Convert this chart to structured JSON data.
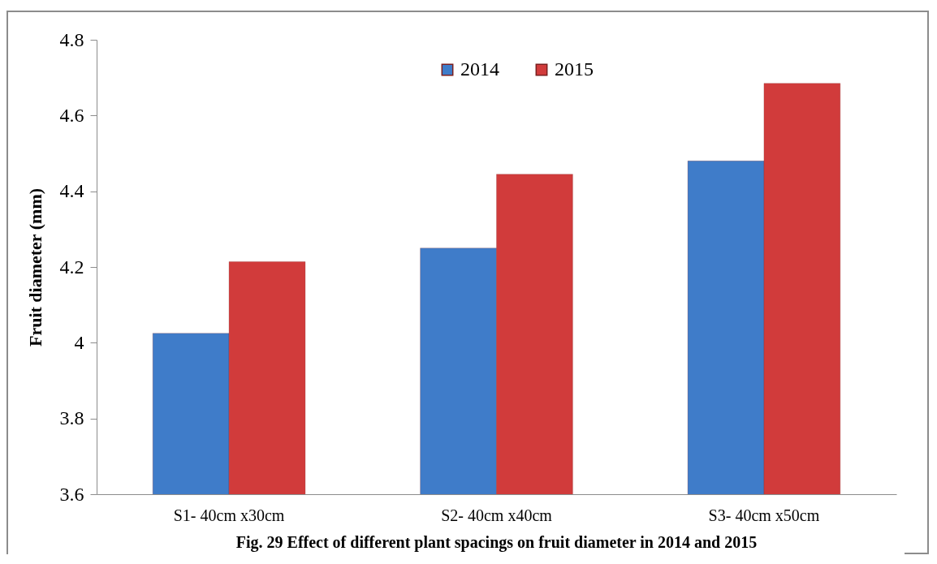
{
  "chart_data": {
    "type": "bar",
    "title": "Fig. 29 Effect of different plant spacings on fruit diameter in 2014 and 2015",
    "ylabel": "Fruit diameter (mm)",
    "categories": [
      "S1- 40cm x30cm",
      "S2- 40cm x40cm",
      "S3- 40cm x50cm"
    ],
    "series": [
      {
        "name": "2014",
        "color": "#3f7cc9",
        "values": [
          4.025,
          4.25,
          4.48
        ]
      },
      {
        "name": "2015",
        "color": "#d13b3b",
        "values": [
          4.214,
          4.445,
          4.685
        ]
      }
    ],
    "ylim": [
      3.6,
      4.8
    ],
    "yticks": [
      3.6,
      3.8,
      4,
      4.2,
      4.4,
      4.6,
      4.8
    ],
    "grid": false,
    "legend": "top"
  }
}
